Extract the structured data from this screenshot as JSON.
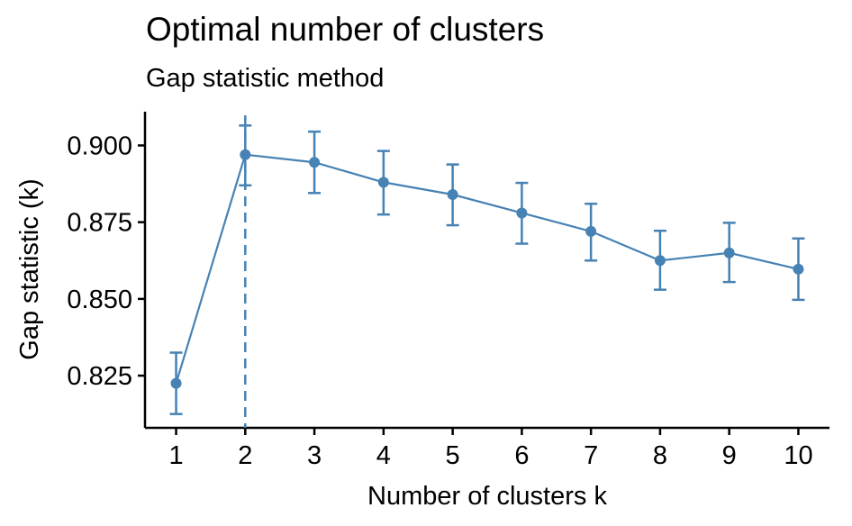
{
  "chart_data": {
    "type": "line",
    "title": "Optimal number of clusters",
    "subtitle": "Gap statistic method",
    "xlabel": "Number of clusters k",
    "ylabel": "Gap statistic (k)",
    "x": [
      1,
      2,
      3,
      4,
      5,
      6,
      7,
      8,
      9,
      10
    ],
    "y": [
      0.8225,
      0.897,
      0.8945,
      0.888,
      0.884,
      0.878,
      0.872,
      0.8625,
      0.865,
      0.8597
    ],
    "error_low": [
      0.8125,
      0.887,
      0.8845,
      0.8775,
      0.874,
      0.868,
      0.8625,
      0.853,
      0.8555,
      0.8497
    ],
    "error_high": [
      0.8325,
      0.9065,
      0.9045,
      0.8982,
      0.8938,
      0.8878,
      0.881,
      0.8722,
      0.8748,
      0.8697
    ],
    "xticks": [
      "1",
      "2",
      "3",
      "4",
      "5",
      "6",
      "7",
      "8",
      "9",
      "10"
    ],
    "yticks": [
      0.825,
      0.85,
      0.875,
      0.9
    ],
    "ytick_labels": [
      "0.825",
      "0.850",
      "0.875",
      "0.900"
    ],
    "xlim": [
      0.55,
      10.45
    ],
    "ylim": [
      0.808,
      0.911
    ],
    "optimal_k": 2,
    "color": "#4682B4",
    "grid": false,
    "legend": "none"
  }
}
